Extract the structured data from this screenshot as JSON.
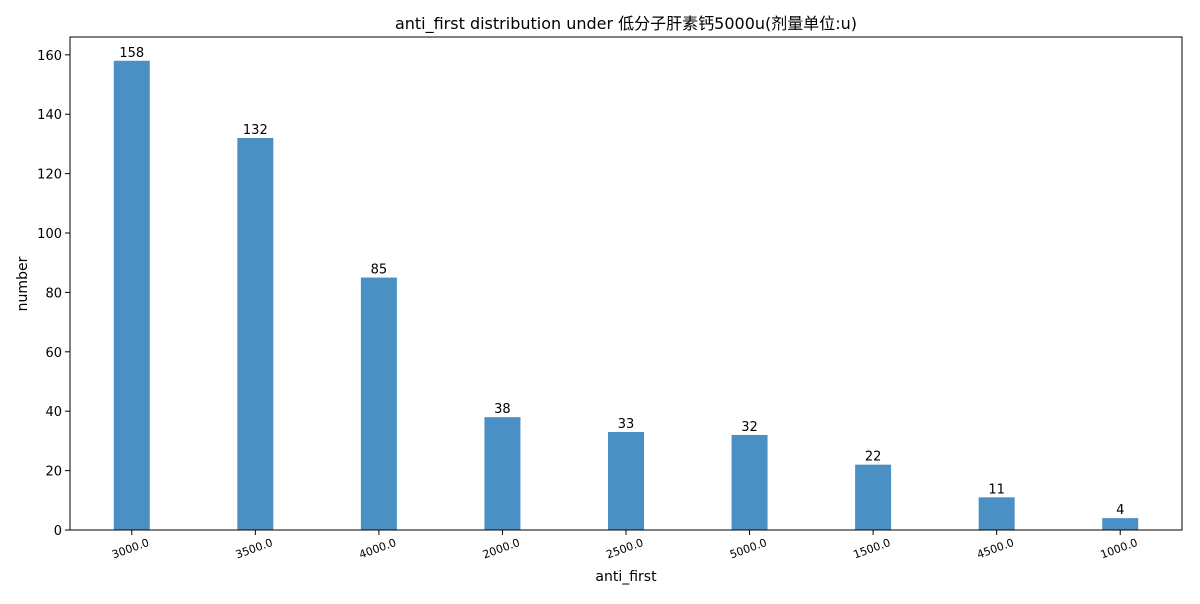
{
  "chart_data": {
    "type": "bar",
    "title": "anti_first distribution under 低分子肝素钙5000u(剂量单位:u)",
    "xlabel": "anti_first",
    "ylabel": "number",
    "categories": [
      "3000.0",
      "3500.0",
      "4000.0",
      "2000.0",
      "2500.0",
      "5000.0",
      "1500.0",
      "4500.0",
      "1000.0"
    ],
    "values": [
      158,
      132,
      85,
      38,
      33,
      32,
      22,
      11,
      4
    ],
    "ylim": [
      0,
      166
    ],
    "yticks": [
      0,
      20,
      40,
      60,
      80,
      100,
      120,
      140,
      160
    ],
    "bar_color": "#4a90c4",
    "grid": false,
    "legend": "none"
  }
}
